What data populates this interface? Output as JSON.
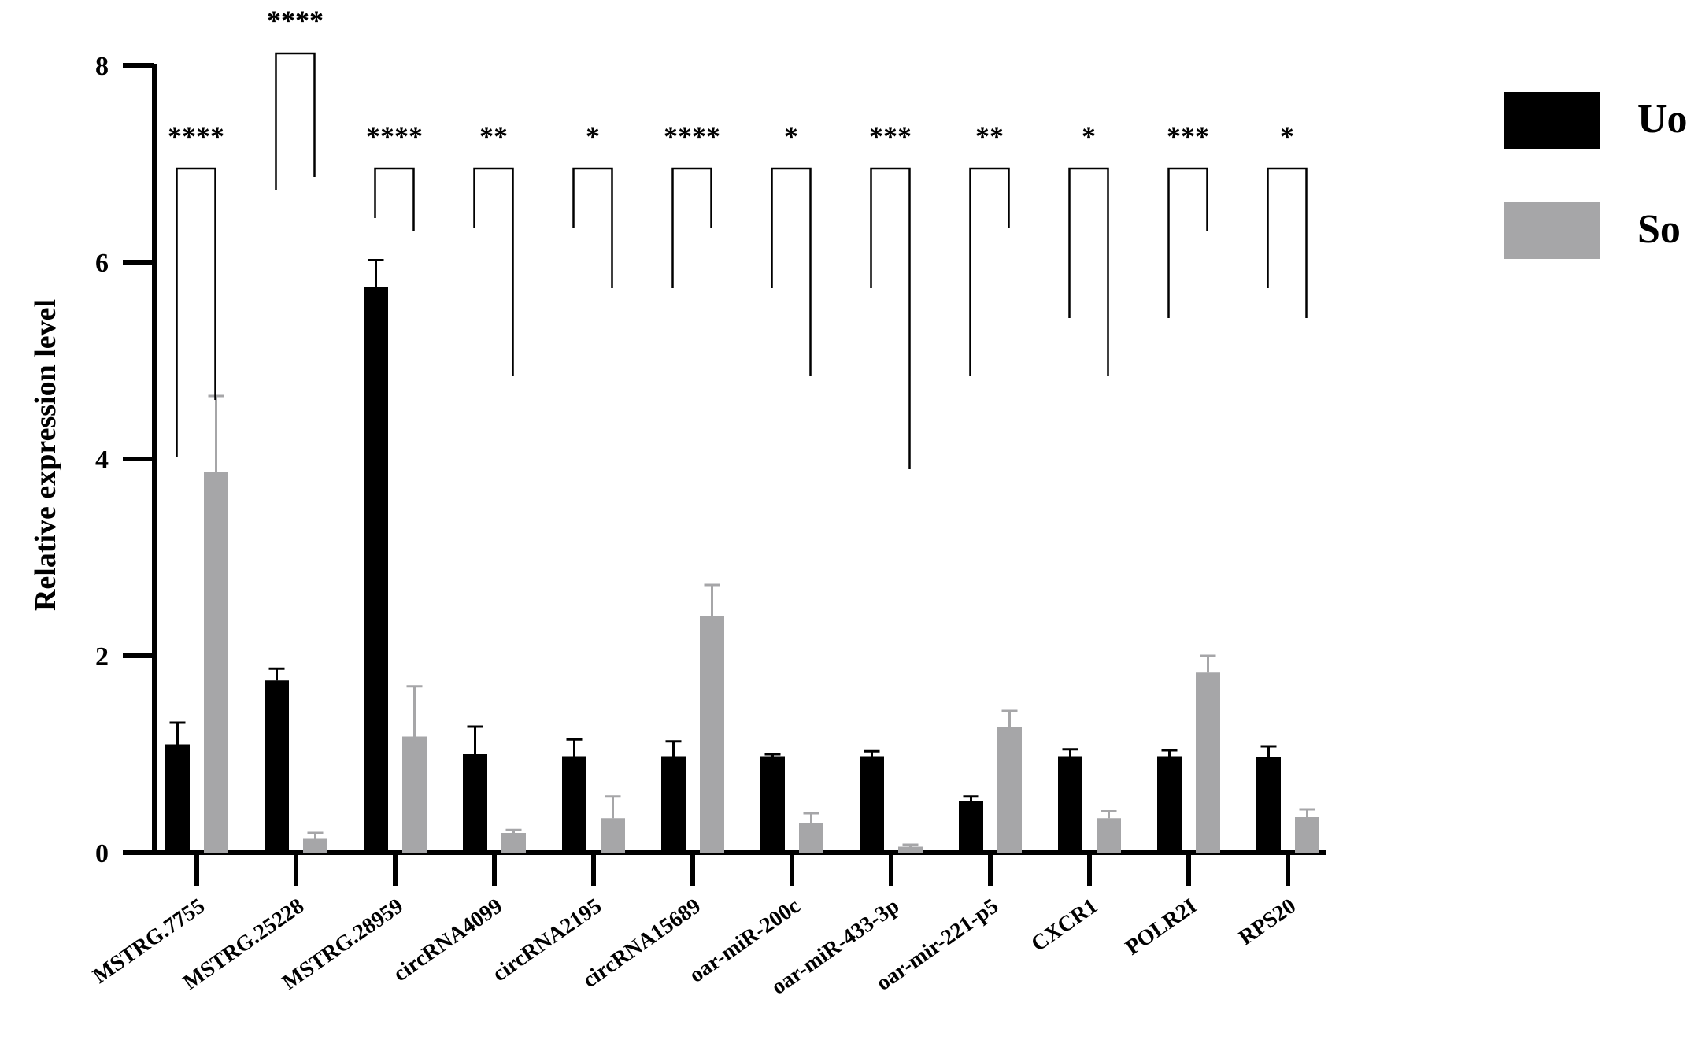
{
  "chart_data": {
    "type": "bar",
    "ylabel": "Relative expression level",
    "xlabel": "",
    "ylim": [
      0,
      8
    ],
    "yticks": [
      "0",
      "2",
      "4",
      "6",
      "8"
    ],
    "grid": false,
    "legend_position": "top-right",
    "categories": [
      "MSTRG.7755",
      "MSTRG.25228",
      "MSTRG.28959",
      "circRNA4099",
      "circRNA2195",
      "circRNA15689",
      "oar-miR-200c",
      "oar-miR-433-3p",
      "oar-mir-221-p5",
      "CXCR1",
      "POLR2I",
      "RPS20"
    ],
    "series": [
      {
        "name": "Uo",
        "color": "#000000",
        "values": [
          1.1,
          1.75,
          5.75,
          1.0,
          0.98,
          0.98,
          0.98,
          0.98,
          0.52,
          0.98,
          0.98,
          0.97
        ],
        "errors": [
          0.22,
          0.12,
          0.27,
          0.28,
          0.17,
          0.15,
          0.02,
          0.05,
          0.05,
          0.07,
          0.06,
          0.11
        ]
      },
      {
        "name": "So",
        "color": "#a6a6a8",
        "values": [
          3.87,
          0.14,
          1.18,
          0.2,
          0.35,
          2.4,
          0.3,
          0.06,
          1.28,
          0.35,
          1.83,
          0.36
        ],
        "errors": [
          0.77,
          0.06,
          0.51,
          0.03,
          0.22,
          0.32,
          0.1,
          0.02,
          0.16,
          0.07,
          0.17,
          0.08
        ]
      }
    ],
    "annotations": [
      "****",
      "****",
      "****",
      "**",
      "*",
      "****",
      "*",
      "***",
      "**",
      "*",
      "***",
      "*"
    ]
  }
}
